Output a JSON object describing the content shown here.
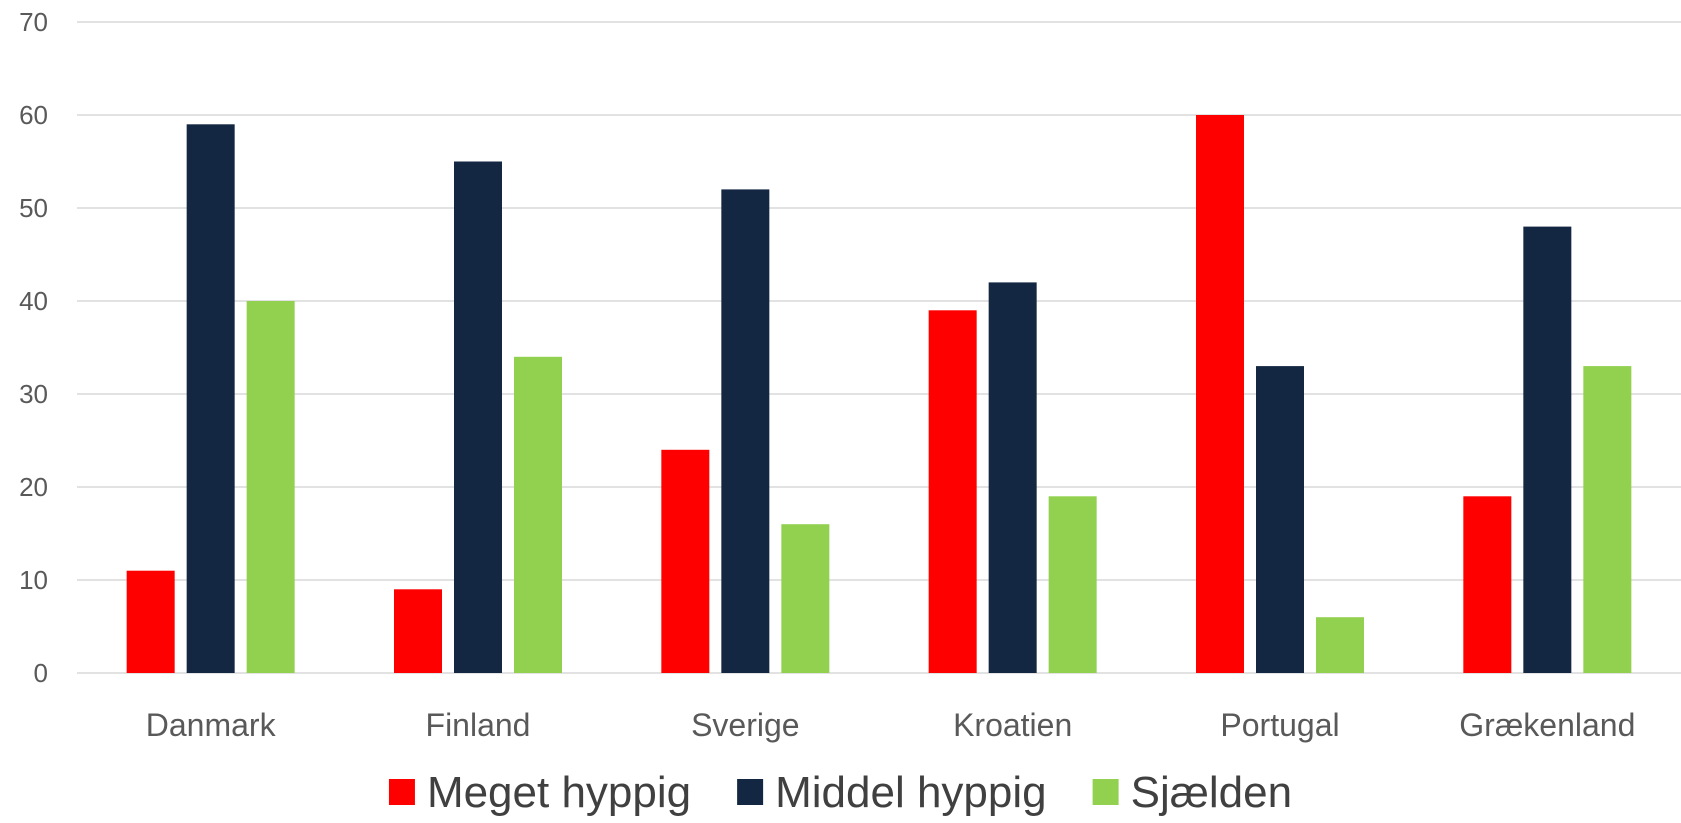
{
  "chart_data": {
    "type": "bar",
    "categories": [
      "Danmark",
      "Finland",
      "Sverige",
      "Kroatien",
      "Portugal",
      "Grækenland"
    ],
    "series": [
      {
        "name": "Meget hyppig",
        "color": "#ff0000",
        "values": [
          11,
          9,
          24,
          39,
          60,
          19
        ]
      },
      {
        "name": "Middel hyppig",
        "color": "#132742",
        "values": [
          59,
          55,
          52,
          42,
          33,
          48
        ]
      },
      {
        "name": "Sjælden",
        "color": "#92d050",
        "values": [
          40,
          34,
          16,
          19,
          6,
          33
        ]
      }
    ],
    "title": "",
    "xlabel": "",
    "ylabel": "",
    "ylim": [
      0,
      70
    ],
    "yticks": [
      0,
      10,
      20,
      30,
      40,
      50,
      60,
      70
    ],
    "grid": true,
    "legend_position": "bottom"
  }
}
